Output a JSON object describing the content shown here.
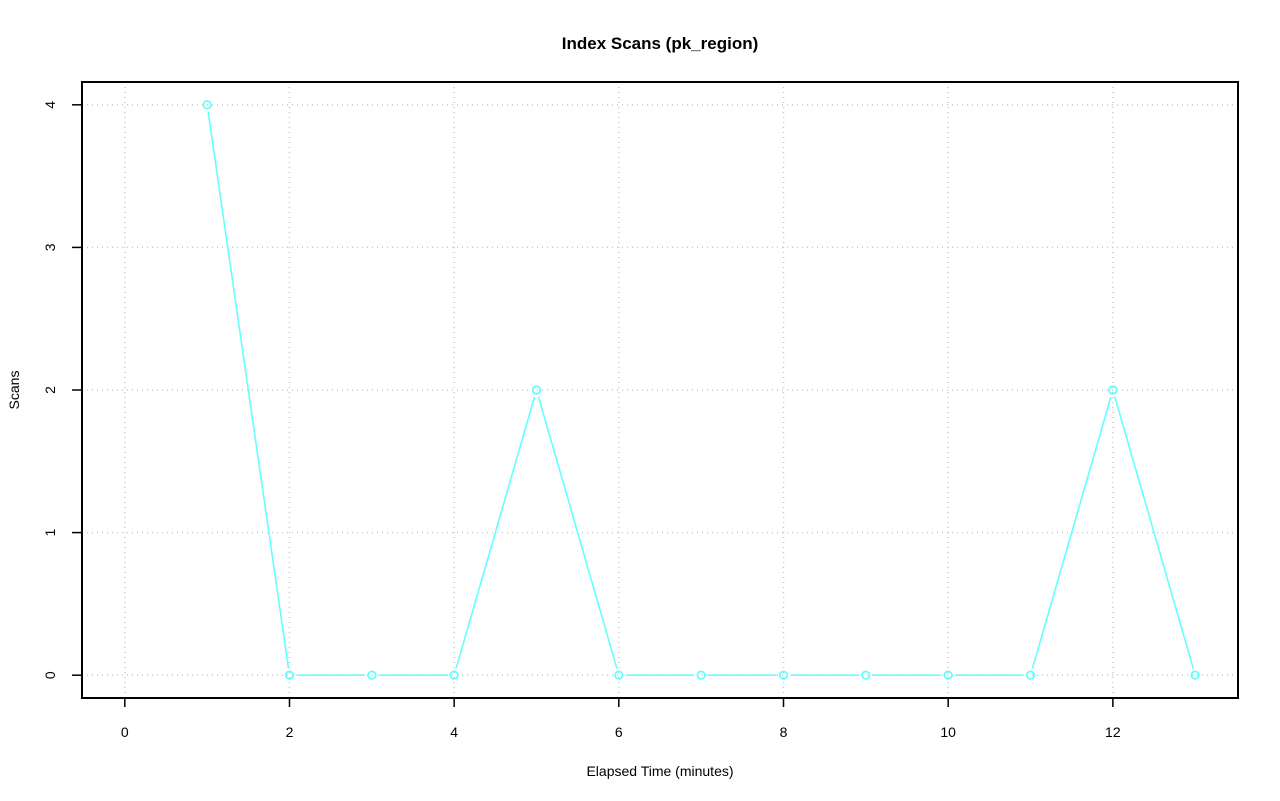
{
  "chart_data": {
    "type": "line",
    "title": "Index Scans (pk_region)",
    "xlabel": "Elapsed Time (minutes)",
    "ylabel": "Scans",
    "xlim": [
      0,
      13
    ],
    "ylim": [
      0,
      4
    ],
    "x_ticks": [
      0,
      2,
      4,
      6,
      8,
      10,
      12
    ],
    "y_ticks": [
      0,
      1,
      2,
      3,
      4
    ],
    "grid": true,
    "series": [
      {
        "color": "#66FFFF",
        "marker": "open-circle",
        "x": [
          1,
          2,
          3,
          4,
          5,
          6,
          7,
          8,
          9,
          10,
          11,
          12,
          13
        ],
        "y": [
          4,
          0,
          0,
          0,
          2,
          0,
          0,
          0,
          0,
          0,
          0,
          2,
          0
        ]
      }
    ]
  }
}
